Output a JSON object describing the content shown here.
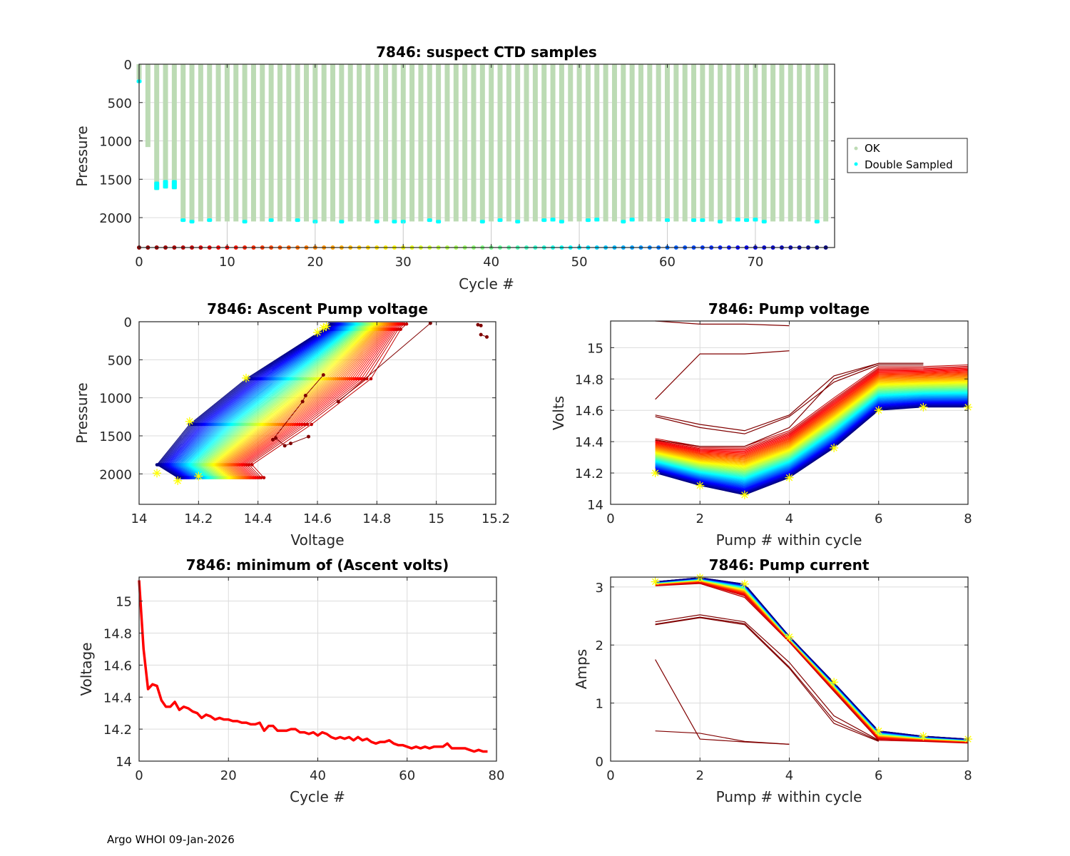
{
  "footer": "Argo WHOI 09-Jan-2026",
  "colors": {
    "ok": "#bcdbb4",
    "double_sampled": "#00ffff",
    "marker_star": "#ffff00",
    "min_line": "#ff0000",
    "outlier": "#800000"
  },
  "chart_data": [
    {
      "id": "ctd",
      "type": "scatter",
      "title": "7846: suspect CTD samples",
      "xlabel": "Cycle #",
      "ylabel": "Pressure",
      "xlim": [
        0,
        79
      ],
      "ylim": [
        0,
        2390
      ],
      "y_reversed": true,
      "xticks": [
        0,
        10,
        20,
        30,
        40,
        50,
        60,
        70
      ],
      "yticks": [
        0,
        500,
        1000,
        1500,
        2000
      ],
      "grid": true,
      "legend": {
        "placement": "outside-right",
        "entries": [
          "OK",
          "Double Sampled"
        ]
      },
      "cycles": 79,
      "profile_max_pressure": {
        "0": 200,
        "1": 1080,
        "2": 1640,
        "3": 1620,
        "4": 1630,
        "default": 2050
      },
      "double_sampled": [
        {
          "cycle": 0,
          "p": [
            200,
            220
          ]
        },
        {
          "cycle": 2,
          "p": [
            1530,
            1640
          ]
        },
        {
          "cycle": 3,
          "p": [
            1510,
            1620
          ]
        },
        {
          "cycle": 4,
          "p": [
            1510,
            1630
          ]
        },
        {
          "cycle": 5,
          "p": [
            2010,
            2040
          ]
        },
        {
          "cycle": 6,
          "p": [
            2030,
            2050
          ]
        },
        {
          "cycle": 8,
          "p": [
            2010,
            2050
          ]
        },
        {
          "cycle": 12,
          "p": [
            2030,
            2050
          ]
        },
        {
          "cycle": 15,
          "p": [
            2010,
            2050
          ]
        },
        {
          "cycle": 18,
          "p": [
            2010,
            2050
          ]
        },
        {
          "cycle": 20,
          "p": [
            2030,
            2050
          ]
        },
        {
          "cycle": 23,
          "p": [
            2030,
            2050
          ]
        },
        {
          "cycle": 27,
          "p": [
            2030,
            2050
          ]
        },
        {
          "cycle": 29,
          "p": [
            2030,
            2050
          ]
        },
        {
          "cycle": 30,
          "p": [
            2030,
            2050
          ]
        },
        {
          "cycle": 33,
          "p": [
            2010,
            2050
          ]
        },
        {
          "cycle": 34,
          "p": [
            2030,
            2050
          ]
        },
        {
          "cycle": 39,
          "p": [
            2030,
            2050
          ]
        },
        {
          "cycle": 41,
          "p": [
            2010,
            2050
          ]
        },
        {
          "cycle": 43,
          "p": [
            2030,
            2050
          ]
        },
        {
          "cycle": 46,
          "p": [
            2010,
            2050
          ]
        },
        {
          "cycle": 47,
          "p": [
            2000,
            2050
          ]
        },
        {
          "cycle": 48,
          "p": [
            2030,
            2050
          ]
        },
        {
          "cycle": 51,
          "p": [
            2010,
            2050
          ]
        },
        {
          "cycle": 52,
          "p": [
            2000,
            2050
          ]
        },
        {
          "cycle": 55,
          "p": [
            2030,
            2050
          ]
        },
        {
          "cycle": 56,
          "p": [
            2000,
            2050
          ]
        },
        {
          "cycle": 60,
          "p": [
            2010,
            2050
          ]
        },
        {
          "cycle": 63,
          "p": [
            2010,
            2050
          ]
        },
        {
          "cycle": 64,
          "p": [
            2010,
            2050
          ]
        },
        {
          "cycle": 66,
          "p": [
            2030,
            2050
          ]
        },
        {
          "cycle": 68,
          "p": [
            2000,
            2050
          ]
        },
        {
          "cycle": 69,
          "p": [
            2010,
            2050
          ]
        },
        {
          "cycle": 70,
          "p": [
            2000,
            2050
          ]
        },
        {
          "cycle": 71,
          "p": [
            2030,
            2050
          ]
        },
        {
          "cycle": 77,
          "p": [
            2030,
            2050
          ]
        }
      ],
      "bottom_markers_pressure": 2390
    },
    {
      "id": "ascent",
      "type": "line",
      "title": "7846: Ascent Pump voltage",
      "xlabel": "Voltage",
      "ylabel": "Pressure",
      "xlim": [
        14,
        15.2
      ],
      "ylim": [
        0,
        2400
      ],
      "y_reversed": true,
      "xticks": [
        14,
        14.2,
        14.4,
        14.6,
        14.8,
        15,
        15.2
      ],
      "yticks": [
        0,
        500,
        1000,
        1500,
        2000
      ],
      "grid": true,
      "colormap": "jet (cycle 0 = dark red, cycle 78 = dark blue)",
      "family_pressures": [
        2050,
        1880,
        1350,
        750,
        100,
        30
      ],
      "family_newest_volts": [
        14.13,
        14.06,
        14.17,
        14.36,
        14.62,
        14.64
      ],
      "family_oldest_volts": [
        14.42,
        14.38,
        14.58,
        14.78,
        14.88,
        14.9
      ],
      "outliers": [
        {
          "v": [
            14.67,
            14.98
          ],
          "p": [
            1050,
            20
          ]
        },
        {
          "v": [
            14.57,
            14.51,
            14.49,
            14.46,
            14.45,
            14.55,
            14.56,
            14.62
          ],
          "p": [
            1510,
            1600,
            1630,
            1530,
            1550,
            1050,
            970,
            700
          ]
        },
        {
          "v": [
            15.14,
            15.15
          ],
          "p": [
            40,
            50
          ]
        },
        {
          "v": [
            15.15,
            15.17
          ],
          "p": [
            170,
            200
          ]
        }
      ],
      "star_markers": [
        {
          "v": 14.06,
          "p": 1990
        },
        {
          "v": 14.13,
          "p": 2090
        },
        {
          "v": 14.2,
          "p": 2030
        },
        {
          "v": 14.17,
          "p": 1310
        },
        {
          "v": 14.36,
          "p": 740
        },
        {
          "v": 14.6,
          "p": 140
        },
        {
          "v": 14.62,
          "p": 80
        },
        {
          "v": 14.63,
          "p": 60
        }
      ]
    },
    {
      "id": "pumpv",
      "type": "line",
      "title": "7846: Pump voltage",
      "xlabel": "Pump # within cycle",
      "ylabel": "Volts",
      "xlim": [
        0,
        8
      ],
      "ylim": [
        14,
        15.17
      ],
      "xticks": [
        0,
        2,
        4,
        6,
        8
      ],
      "yticks": [
        14,
        14.2,
        14.4,
        14.6,
        14.8,
        15
      ],
      "grid": true,
      "newest_profile": [
        14.2,
        14.12,
        14.06,
        14.17,
        14.36,
        14.6,
        14.62,
        14.62
      ],
      "oldest_profile": [
        14.42,
        14.37,
        14.37,
        14.47,
        14.68,
        14.88,
        14.88,
        14.89
      ],
      "outliers": [
        {
          "x": [
            1,
            2,
            3,
            4
          ],
          "y": [
            15.17,
            15.15,
            15.15,
            15.14
          ]
        },
        {
          "x": [
            1,
            2,
            3,
            4
          ],
          "y": [
            14.67,
            14.96,
            14.96,
            14.98
          ]
        },
        {
          "x": [
            1,
            2,
            3,
            4,
            5,
            6,
            7
          ],
          "y": [
            14.57,
            14.51,
            14.47,
            14.57,
            14.82,
            14.9,
            14.9
          ]
        },
        {
          "x": [
            1,
            2,
            3,
            4,
            5,
            6,
            7
          ],
          "y": [
            14.56,
            14.49,
            14.45,
            14.56,
            14.78,
            14.89,
            14.89
          ]
        },
        {
          "x": [
            1,
            2,
            3,
            4,
            5,
            6,
            7
          ],
          "y": [
            14.41,
            14.37,
            14.37,
            14.49,
            14.8,
            14.9,
            14.9
          ]
        }
      ],
      "star_markers": [
        [
          1,
          14.2
        ],
        [
          2,
          14.12
        ],
        [
          3,
          14.06
        ],
        [
          4,
          14.17
        ],
        [
          5,
          14.36
        ],
        [
          6,
          14.6
        ],
        [
          7,
          14.62
        ],
        [
          8,
          14.62
        ]
      ]
    },
    {
      "id": "minv",
      "type": "line",
      "title": "7846: minimum of (Ascent volts)",
      "xlabel": "Cycle #",
      "ylabel": "Voltage",
      "xlim": [
        0,
        80
      ],
      "ylim": [
        14,
        15.15
      ],
      "xticks": [
        0,
        20,
        40,
        60,
        80
      ],
      "yticks": [
        14,
        14.2,
        14.4,
        14.6,
        14.8,
        15
      ],
      "grid": true,
      "x": [
        0,
        1,
        2,
        3,
        4,
        5,
        6,
        7,
        8,
        9,
        10,
        11,
        12,
        13,
        14,
        15,
        16,
        17,
        18,
        19,
        20,
        21,
        22,
        23,
        24,
        25,
        26,
        27,
        28,
        29,
        30,
        31,
        32,
        33,
        34,
        35,
        36,
        37,
        38,
        39,
        40,
        41,
        42,
        43,
        44,
        45,
        46,
        47,
        48,
        49,
        50,
        51,
        52,
        53,
        54,
        55,
        56,
        57,
        58,
        59,
        60,
        61,
        62,
        63,
        64,
        65,
        66,
        67,
        68,
        69,
        70,
        71,
        72,
        73,
        74,
        75,
        76,
        77,
        78
      ],
      "values": [
        15.13,
        14.7,
        14.45,
        14.48,
        14.47,
        14.38,
        14.34,
        14.34,
        14.37,
        14.32,
        14.34,
        14.33,
        14.31,
        14.3,
        14.27,
        14.29,
        14.28,
        14.26,
        14.27,
        14.26,
        14.26,
        14.25,
        14.25,
        14.24,
        14.24,
        14.23,
        14.23,
        14.24,
        14.19,
        14.22,
        14.22,
        14.19,
        14.19,
        14.19,
        14.2,
        14.2,
        14.18,
        14.18,
        14.17,
        14.18,
        14.16,
        14.18,
        14.17,
        14.15,
        14.14,
        14.15,
        14.14,
        14.15,
        14.13,
        14.15,
        14.13,
        14.14,
        14.12,
        14.11,
        14.12,
        14.12,
        14.13,
        14.11,
        14.1,
        14.1,
        14.09,
        14.08,
        14.09,
        14.08,
        14.09,
        14.08,
        14.09,
        14.09,
        14.09,
        14.11,
        14.08,
        14.08,
        14.08,
        14.08,
        14.07,
        14.06,
        14.07,
        14.06,
        14.06
      ]
    },
    {
      "id": "pumpi",
      "type": "line",
      "title": "7846: Pump current",
      "xlabel": "Pump # within cycle",
      "ylabel": "Amps",
      "xlim": [
        0,
        8
      ],
      "ylim": [
        0,
        3.17
      ],
      "xticks": [
        0,
        2,
        4,
        6,
        8
      ],
      "yticks": [
        0,
        1,
        2,
        3
      ],
      "grid": true,
      "newest_profile": [
        3.09,
        3.16,
        3.05,
        2.15,
        1.35,
        0.52,
        0.43,
        0.38
      ],
      "oldest_profile": [
        3.02,
        3.06,
        2.82,
        2.05,
        1.2,
        0.36,
        0.34,
        0.31
      ],
      "outliers": [
        {
          "x": [
            1,
            2,
            3,
            4,
            5,
            6
          ],
          "y": [
            2.4,
            2.52,
            2.4,
            1.7,
            0.78,
            0.36
          ]
        },
        {
          "x": [
            1,
            2,
            3,
            4,
            5,
            6
          ],
          "y": [
            2.36,
            2.48,
            2.37,
            1.62,
            0.7,
            0.35
          ]
        },
        {
          "x": [
            1,
            2,
            3,
            4,
            5,
            6
          ],
          "y": [
            2.35,
            2.47,
            2.35,
            1.6,
            0.65,
            0.34
          ]
        },
        {
          "x": [
            1,
            2,
            3,
            4
          ],
          "y": [
            1.75,
            0.38,
            0.33,
            0.29
          ]
        },
        {
          "x": [
            1,
            2,
            3,
            4
          ],
          "y": [
            0.52,
            0.48,
            0.34,
            0.29
          ]
        }
      ],
      "star_markers": [
        [
          1,
          3.09
        ],
        [
          2,
          3.16
        ],
        [
          3,
          3.05
        ],
        [
          4,
          2.14
        ],
        [
          5,
          1.36
        ],
        [
          6,
          0.52
        ],
        [
          7,
          0.43
        ],
        [
          8,
          0.38
        ]
      ]
    }
  ]
}
